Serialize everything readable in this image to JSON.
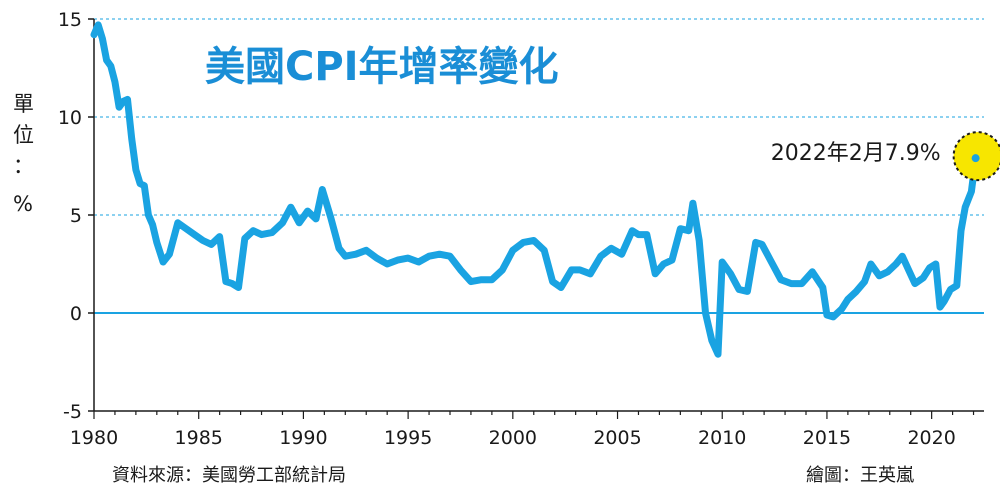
{
  "chart_data": {
    "type": "line",
    "title": "美國CPI年增率變化",
    "ylabel_chars": [
      "單",
      "位",
      "：",
      "%"
    ],
    "xlabel": "",
    "xlim": [
      1980,
      2022.5
    ],
    "ylim": [
      -5,
      15
    ],
    "y_ticks": [
      -5,
      0,
      5,
      10,
      15
    ],
    "y_tick_labels": [
      "-5",
      "0",
      "5",
      "10",
      "15"
    ],
    "x_ticks": [
      1980,
      1985,
      1990,
      1995,
      2000,
      2005,
      2010,
      2015,
      2020
    ],
    "x_tick_labels": [
      "1980",
      "1985",
      "1990",
      "1995",
      "2000",
      "2005",
      "2010",
      "2015",
      "2020"
    ],
    "grid": "horizontal dashed",
    "line_color": "#1aa3e2",
    "highlight_color": "#f7e600",
    "annotation": {
      "text": "2022年2月7.9%",
      "x": 2022.1,
      "y": 7.9
    },
    "source": "資料來源：美國勞工部統計局",
    "credit": "繪圖：王英嵐",
    "series": [
      {
        "x": [
          1980.0,
          1980.2,
          1980.4,
          1980.6,
          1980.8,
          1981.0,
          1981.2,
          1981.4,
          1981.6,
          1981.8,
          1982.0,
          1982.2,
          1982.4,
          1982.6,
          1982.8,
          1983.0,
          1983.3,
          1983.6,
          1984.0,
          1984.4,
          1984.8,
          1985.2,
          1985.6,
          1986.0,
          1986.3,
          1986.6,
          1986.9,
          1987.2,
          1987.6,
          1988.0,
          1988.5,
          1989.0,
          1989.4,
          1989.8,
          1990.2,
          1990.6,
          1990.9,
          1991.3,
          1991.7,
          1992.0,
          1992.5,
          1993.0,
          1993.5,
          1994.0,
          1994.5,
          1995.0,
          1995.5,
          1996.0,
          1996.5,
          1997.0,
          1997.5,
          1998.0,
          1998.5,
          1999.0,
          1999.5,
          2000.0,
          2000.5,
          2001.0,
          2001.5,
          2001.9,
          2002.3,
          2002.8,
          2003.2,
          2003.7,
          2004.2,
          2004.7,
          2005.2,
          2005.7,
          2006.0,
          2006.4,
          2006.8,
          2007.2,
          2007.6,
          2008.0,
          2008.4,
          2008.6,
          2008.9,
          2009.2,
          2009.5,
          2009.8,
          2010.0,
          2010.4,
          2010.8,
          2011.2,
          2011.6,
          2011.9,
          2012.3,
          2012.8,
          2013.3,
          2013.8,
          2014.3,
          2014.8,
          2015.0,
          2015.3,
          2015.7,
          2016.0,
          2016.4,
          2016.8,
          2017.1,
          2017.5,
          2017.9,
          2018.3,
          2018.6,
          2018.9,
          2019.2,
          2019.6,
          2019.9,
          2020.2,
          2020.4,
          2020.6,
          2020.9,
          2021.2,
          2021.4,
          2021.6,
          2021.9,
          2022.1
        ],
        "y": [
          14.2,
          14.7,
          14.0,
          12.9,
          12.6,
          11.8,
          10.5,
          10.8,
          10.9,
          8.9,
          7.3,
          6.6,
          6.5,
          5.0,
          4.5,
          3.6,
          2.6,
          3.0,
          4.6,
          4.3,
          4.0,
          3.7,
          3.5,
          3.9,
          1.6,
          1.5,
          1.3,
          3.8,
          4.2,
          4.0,
          4.1,
          4.6,
          5.4,
          4.6,
          5.2,
          4.8,
          6.3,
          4.9,
          3.3,
          2.9,
          3.0,
          3.2,
          2.8,
          2.5,
          2.7,
          2.8,
          2.6,
          2.9,
          3.0,
          2.9,
          2.2,
          1.6,
          1.7,
          1.7,
          2.2,
          3.2,
          3.6,
          3.7,
          3.2,
          1.6,
          1.3,
          2.2,
          2.2,
          2.0,
          2.9,
          3.3,
          3.0,
          4.2,
          4.0,
          4.0,
          2.0,
          2.5,
          2.7,
          4.3,
          4.2,
          5.6,
          3.7,
          0.0,
          -1.4,
          -2.1,
          2.6,
          2.0,
          1.2,
          1.1,
          3.6,
          3.5,
          2.7,
          1.7,
          1.5,
          1.5,
          2.1,
          1.3,
          -0.1,
          -0.2,
          0.2,
          0.7,
          1.1,
          1.6,
          2.5,
          1.9,
          2.1,
          2.5,
          2.9,
          2.2,
          1.5,
          1.8,
          2.3,
          2.5,
          0.3,
          0.6,
          1.2,
          1.4,
          4.2,
          5.4,
          6.2,
          7.9
        ]
      }
    ]
  }
}
